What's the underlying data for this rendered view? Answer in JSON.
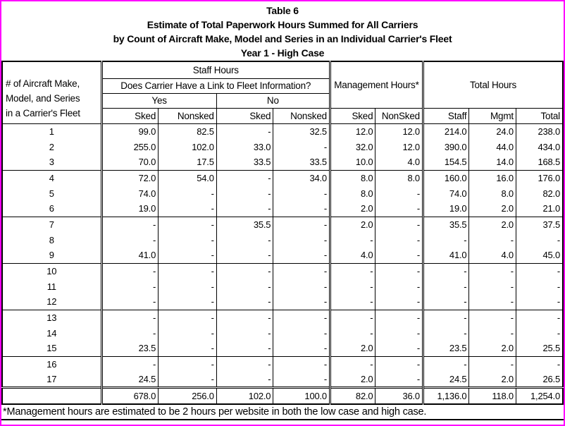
{
  "page": {
    "border_color": "#ff00ff",
    "table_border_color": "#000000"
  },
  "title": {
    "line1": "Table 6",
    "line2": "Estimate of Total Paperwork Hours Summed for All Carriers",
    "line3": "by Count of Aircraft Make, Model and Series in an Individual Carrier's Fleet",
    "line4": "Year 1 - High Case"
  },
  "table": {
    "row_header": "# of Aircraft Make,\nModel, and Series\nin a Carrier's Fleet",
    "staff_hours_label": "Staff Hours",
    "link_question": "Does Carrier Have a Link to Fleet Information?",
    "yes_label": "Yes",
    "no_label": "No",
    "management_hours_label": "Management Hours*",
    "total_hours_label": "Total Hours",
    "sub_headers": [
      "Sked",
      "Nonsked",
      "Sked",
      "Nonsked",
      "Sked",
      "NonSked",
      "Staff",
      "Mgmt",
      "Total"
    ],
    "rows": [
      {
        "fleet": "1",
        "group_start": true,
        "values": [
          "99.0",
          "82.5",
          "-",
          "32.5",
          "12.0",
          "12.0",
          "214.0",
          "24.0",
          "238.0"
        ]
      },
      {
        "fleet": "2",
        "group_start": false,
        "values": [
          "255.0",
          "102.0",
          "33.0",
          "-",
          "32.0",
          "12.0",
          "390.0",
          "44.0",
          "434.0"
        ]
      },
      {
        "fleet": "3",
        "group_start": false,
        "values": [
          "70.0",
          "17.5",
          "33.5",
          "33.5",
          "10.0",
          "4.0",
          "154.5",
          "14.0",
          "168.5"
        ]
      },
      {
        "fleet": "4",
        "group_start": true,
        "values": [
          "72.0",
          "54.0",
          "-",
          "34.0",
          "8.0",
          "8.0",
          "160.0",
          "16.0",
          "176.0"
        ]
      },
      {
        "fleet": "5",
        "group_start": false,
        "values": [
          "74.0",
          "-",
          "-",
          "-",
          "8.0",
          "-",
          "74.0",
          "8.0",
          "82.0"
        ]
      },
      {
        "fleet": "6",
        "group_start": false,
        "values": [
          "19.0",
          "-",
          "-",
          "-",
          "2.0",
          "-",
          "19.0",
          "2.0",
          "21.0"
        ]
      },
      {
        "fleet": "7",
        "group_start": true,
        "values": [
          "-",
          "-",
          "35.5",
          "-",
          "2.0",
          "-",
          "35.5",
          "2.0",
          "37.5"
        ]
      },
      {
        "fleet": "8",
        "group_start": false,
        "values": [
          "-",
          "-",
          "-",
          "-",
          "-",
          "-",
          "-",
          "-",
          "-"
        ]
      },
      {
        "fleet": "9",
        "group_start": false,
        "values": [
          "41.0",
          "-",
          "-",
          "-",
          "4.0",
          "-",
          "41.0",
          "4.0",
          "45.0"
        ]
      },
      {
        "fleet": "10",
        "group_start": true,
        "values": [
          "-",
          "-",
          "-",
          "-",
          "-",
          "-",
          "-",
          "-",
          "-"
        ]
      },
      {
        "fleet": "11",
        "group_start": false,
        "values": [
          "-",
          "-",
          "-",
          "-",
          "-",
          "-",
          "-",
          "-",
          "-"
        ]
      },
      {
        "fleet": "12",
        "group_start": false,
        "values": [
          "-",
          "-",
          "-",
          "-",
          "-",
          "-",
          "-",
          "-",
          "-"
        ]
      },
      {
        "fleet": "13",
        "group_start": true,
        "values": [
          "-",
          "-",
          "-",
          "-",
          "-",
          "-",
          "-",
          "-",
          "-"
        ]
      },
      {
        "fleet": "14",
        "group_start": false,
        "values": [
          "-",
          "-",
          "-",
          "-",
          "-",
          "-",
          "-",
          "-",
          "-"
        ]
      },
      {
        "fleet": "15",
        "group_start": false,
        "values": [
          "23.5",
          "-",
          "-",
          "-",
          "2.0",
          "-",
          "23.5",
          "2.0",
          "25.5"
        ]
      },
      {
        "fleet": "16",
        "group_start": true,
        "values": [
          "-",
          "-",
          "-",
          "-",
          "-",
          "-",
          "-",
          "-",
          "-"
        ]
      },
      {
        "fleet": "17",
        "group_start": false,
        "values": [
          "24.5",
          "-",
          "-",
          "-",
          "2.0",
          "-",
          "24.5",
          "2.0",
          "26.5"
        ]
      }
    ],
    "totals": {
      "fleet": "",
      "values": [
        "678.0",
        "256.0",
        "102.0",
        "100.0",
        "82.0",
        "36.0",
        "1,136.0",
        "118.0",
        "1,254.0"
      ]
    }
  },
  "footnote": "*Management hours are estimated to be 2 hours per website in both the low case and high case."
}
